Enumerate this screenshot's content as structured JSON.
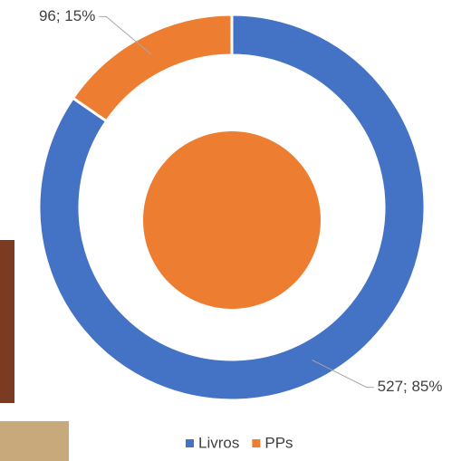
{
  "chart_data": {
    "type": "donut",
    "categories": [
      "Livros",
      "PPs"
    ],
    "values": [
      527,
      96
    ],
    "value_labels": [
      "527; 85%",
      "96; 15%"
    ],
    "colors": [
      "#4472c4",
      "#ed7d31"
    ],
    "legend": "bottom"
  }
}
